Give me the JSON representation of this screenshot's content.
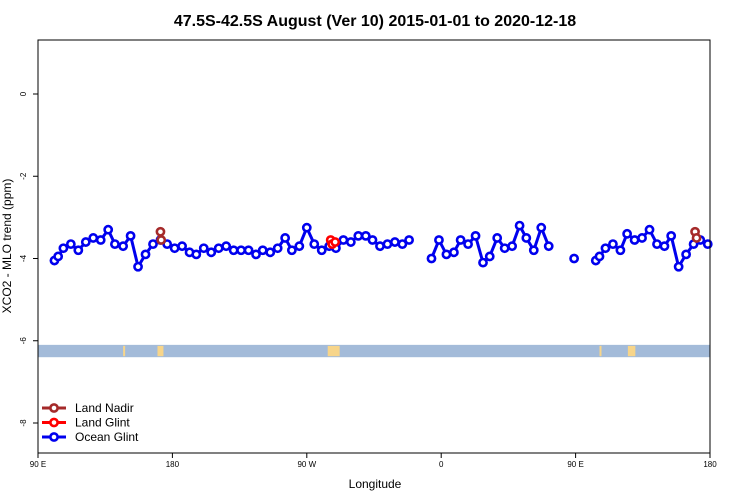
{
  "chart_data": {
    "type": "line",
    "title": "47.5S-42.5S August (Ver 10)   2015-01-01 to 2020-12-18",
    "xlabel": "Longitude",
    "ylabel": "XCO2 - MLO trend (ppm)",
    "xlim": [
      90,
      450
    ],
    "ylim": [
      -8.5,
      1.7
    ],
    "x_ticks": [
      {
        "value": 90,
        "label": "90 E"
      },
      {
        "value": 180,
        "label": "180"
      },
      {
        "value": 270,
        "label": "90 W"
      },
      {
        "value": 360,
        "label": "0"
      },
      {
        "value": 450,
        "label": "90 E"
      },
      {
        "value": 540,
        "label": "180"
      }
    ],
    "y_ticks": [
      {
        "value": 0,
        "label": "0"
      },
      {
        "value": -2,
        "label": "-2"
      },
      {
        "value": -4,
        "label": "-4"
      },
      {
        "value": -6,
        "label": "-6"
      },
      {
        "value": -8,
        "label": "-8"
      }
    ],
    "land_band": {
      "y_top": -6.1,
      "y_bottom": -6.4,
      "color": "#a3bbd9",
      "land_color": "#f7d58a",
      "land_segments": [
        [
          147,
          148
        ],
        [
          170,
          174
        ],
        [
          284,
          292
        ],
        [
          466,
          467
        ],
        [
          485,
          490
        ]
      ]
    },
    "legend": {
      "placement": "bottom-left"
    },
    "series": [
      {
        "name": "Land Nadir",
        "color": "#a52a2a",
        "segments": [
          [
            {
              "x": 172,
              "y": -3.35
            },
            {
              "x": 172.5,
              "y": -3.55
            }
          ],
          [
            {
              "x": 530,
              "y": -3.35
            },
            {
              "x": 531,
              "y": -3.5
            }
          ]
        ]
      },
      {
        "name": "Land Glint",
        "color": "#ff0000",
        "segments": [
          [
            {
              "x": 286,
              "y": -3.55
            },
            {
              "x": 287,
              "y": -3.65
            },
            {
              "x": 289,
              "y": -3.6
            }
          ]
        ]
      },
      {
        "name": "Ocean Glint",
        "color": "#0000ee",
        "segments": [
          [
            {
              "x": 101,
              "y": -4.05
            },
            {
              "x": 103.5,
              "y": -3.95
            },
            {
              "x": 107,
              "y": -3.75
            },
            {
              "x": 112,
              "y": -3.65
            },
            {
              "x": 117,
              "y": -3.8
            },
            {
              "x": 122,
              "y": -3.6
            },
            {
              "x": 127,
              "y": -3.5
            },
            {
              "x": 132,
              "y": -3.55
            },
            {
              "x": 137,
              "y": -3.3
            },
            {
              "x": 141.5,
              "y": -3.65
            },
            {
              "x": 147,
              "y": -3.7
            },
            {
              "x": 152,
              "y": -3.45
            },
            {
              "x": 157,
              "y": -4.2
            },
            {
              "x": 162,
              "y": -3.9
            },
            {
              "x": 167,
              "y": -3.65
            },
            {
              "x": 172,
              "y": -3.55
            },
            {
              "x": 176.5,
              "y": -3.65
            },
            {
              "x": 181.5,
              "y": -3.75
            },
            {
              "x": 186.5,
              "y": -3.7
            },
            {
              "x": 191.5,
              "y": -3.85
            },
            {
              "x": 196,
              "y": -3.9
            },
            {
              "x": 201,
              "y": -3.75
            },
            {
              "x": 206,
              "y": -3.85
            },
            {
              "x": 211,
              "y": -3.75
            },
            {
              "x": 216,
              "y": -3.7
            },
            {
              "x": 221,
              "y": -3.8
            },
            {
              "x": 226,
              "y": -3.8
            },
            {
              "x": 231,
              "y": -3.8
            },
            {
              "x": 236,
              "y": -3.9
            },
            {
              "x": 240.5,
              "y": -3.8
            },
            {
              "x": 245.5,
              "y": -3.85
            },
            {
              "x": 250.5,
              "y": -3.75
            },
            {
              "x": 255.5,
              "y": -3.5
            },
            {
              "x": 260,
              "y": -3.8
            },
            {
              "x": 265,
              "y": -3.7
            },
            {
              "x": 270,
              "y": -3.25
            },
            {
              "x": 275,
              "y": -3.65
            },
            {
              "x": 280,
              "y": -3.8
            },
            {
              "x": 285,
              "y": -3.7
            },
            {
              "x": 289.5,
              "y": -3.75
            },
            {
              "x": 294.5,
              "y": -3.55
            },
            {
              "x": 299.5,
              "y": -3.6
            },
            {
              "x": 304.5,
              "y": -3.45
            },
            {
              "x": 309.5,
              "y": -3.45
            },
            {
              "x": 314,
              "y": -3.55
            },
            {
              "x": 319,
              "y": -3.7
            },
            {
              "x": 324,
              "y": -3.65
            },
            {
              "x": 329,
              "y": -3.6
            },
            {
              "x": 334,
              "y": -3.65
            },
            {
              "x": 338.5,
              "y": -3.55
            }
          ],
          [
            {
              "x": 353.5,
              "y": -4.0
            },
            {
              "x": 358.5,
              "y": -3.55
            },
            {
              "x": 363.5,
              "y": -3.9
            },
            {
              "x": 368.5,
              "y": -3.85
            },
            {
              "x": 373,
              "y": -3.55
            },
            {
              "x": 378,
              "y": -3.65
            },
            {
              "x": 383,
              "y": -3.45
            },
            {
              "x": 388,
              "y": -4.1
            },
            {
              "x": 392.5,
              "y": -3.95
            },
            {
              "x": 397.5,
              "y": -3.5
            },
            {
              "x": 402.5,
              "y": -3.75
            },
            {
              "x": 407.5,
              "y": -3.7
            },
            {
              "x": 412.5,
              "y": -3.2
            },
            {
              "x": 417,
              "y": -3.5
            },
            {
              "x": 422,
              "y": -3.8
            },
            {
              "x": 427,
              "y": -3.25
            },
            {
              "x": 432,
              "y": -3.7
            }
          ],
          [
            {
              "x": 449,
              "y": -4.0
            }
          ],
          [
            {
              "x": 463.5,
              "y": -4.05
            },
            {
              "x": 466,
              "y": -3.95
            },
            {
              "x": 470,
              "y": -3.75
            },
            {
              "x": 475,
              "y": -3.65
            },
            {
              "x": 480,
              "y": -3.8
            },
            {
              "x": 484.5,
              "y": -3.4
            },
            {
              "x": 489.5,
              "y": -3.55
            },
            {
              "x": 494.5,
              "y": -3.5
            },
            {
              "x": 499.5,
              "y": -3.3
            },
            {
              "x": 504.5,
              "y": -3.65
            },
            {
              "x": 509.5,
              "y": -3.7
            },
            {
              "x": 514,
              "y": -3.45
            },
            {
              "x": 519,
              "y": -4.2
            },
            {
              "x": 524,
              "y": -3.9
            },
            {
              "x": 529,
              "y": -3.65
            },
            {
              "x": 533.5,
              "y": -3.55
            },
            {
              "x": 538.5,
              "y": -3.65
            }
          ]
        ]
      }
    ]
  }
}
